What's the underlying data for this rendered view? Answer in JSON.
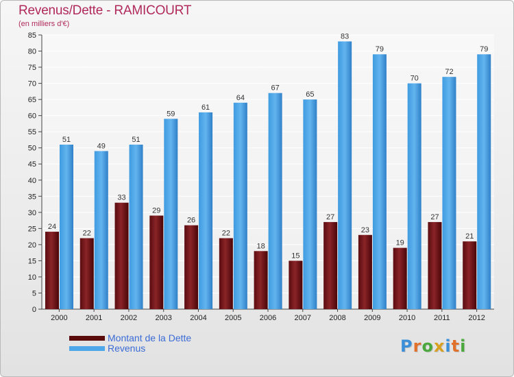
{
  "header": {
    "title": "Revenus/Dette - RAMICOURT",
    "subtitle": "(en milliers d'€)"
  },
  "colors": {
    "title": "#b0295a",
    "debt_bar": "#7a1a1a",
    "revenue_bar": "#4ea7e8",
    "legend_text": "#3a6bd6"
  },
  "legend": {
    "items": [
      {
        "label": "Montant de la Dette",
        "color": "#5a0a0a"
      },
      {
        "label": "Revenus",
        "color": "#4ea7e8"
      }
    ]
  },
  "logo": {
    "text": "Proxiti",
    "letter_colors": [
      "#3a8fd8",
      "#e0702a",
      "#4aa83c",
      "#d8a020",
      "#3a8fd8",
      "#e0702a",
      "#4aa83c"
    ]
  },
  "chart_data": {
    "type": "bar",
    "title": "Revenus/Dette - RAMICOURT",
    "subtitle": "(en milliers d'€)",
    "xlabel": "",
    "ylabel": "",
    "ylim": [
      0,
      85
    ],
    "yticks": [
      0,
      5,
      10,
      15,
      20,
      25,
      30,
      35,
      40,
      45,
      50,
      55,
      60,
      65,
      70,
      75,
      80,
      85
    ],
    "grid": true,
    "legend_position": "bottom-left",
    "categories": [
      "2000",
      "2001",
      "2002",
      "2003",
      "2004",
      "2005",
      "2006",
      "2007",
      "2008",
      "2009",
      "2010",
      "2011",
      "2012"
    ],
    "series": [
      {
        "name": "Montant de la Dette",
        "values": [
          24,
          22,
          33,
          29,
          26,
          22,
          18,
          15,
          27,
          23,
          19,
          27,
          21
        ]
      },
      {
        "name": "Revenus",
        "values": [
          51,
          49,
          51,
          59,
          61,
          64,
          67,
          65,
          83,
          79,
          70,
          72,
          79
        ]
      }
    ]
  }
}
